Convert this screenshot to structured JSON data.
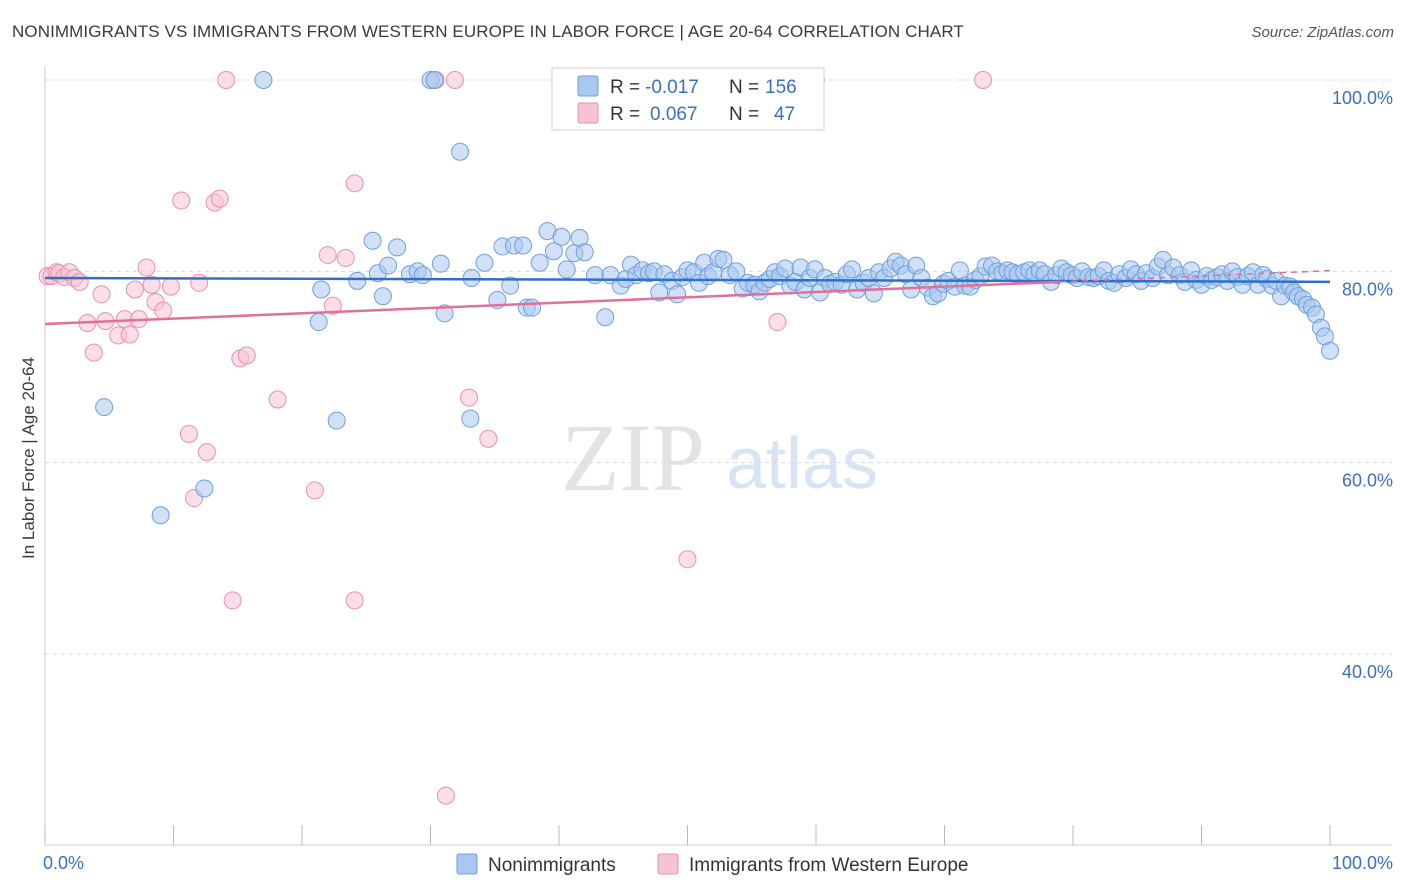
{
  "title": "NONIMMIGRANTS VS IMMIGRANTS FROM WESTERN EUROPE IN LABOR FORCE | AGE 20-64 CORRELATION CHART",
  "source": "Source: ZipAtlas.com",
  "watermark": {
    "zip": "ZIP",
    "atlas": "atlas"
  },
  "colors": {
    "blue_fill": "#a9c8f0",
    "blue_stroke": "#6f9fdc",
    "blue_line": "#2f6fcc",
    "pink_fill": "#f7c3d3",
    "pink_stroke": "#ea8fae",
    "pink_line": "#e0709a",
    "tick_text": "#3a6fc4",
    "grid": "#d9d9d9"
  },
  "legend": {
    "rows": [
      {
        "r_label": "R =",
        "r_value": "-0.017",
        "n_label": "N =",
        "n_value": "156"
      },
      {
        "r_label": "R =",
        "r_value": "0.067",
        "n_label": "N =",
        "n_value": "47"
      }
    ]
  },
  "chart_data": {
    "type": "scatter",
    "ylabel": "In Labor Force | Age 20-64",
    "xlim": [
      0,
      100
    ],
    "ylim": [
      20,
      102
    ],
    "x_tick_labels": [
      {
        "value": 0,
        "label": "0.0%"
      },
      {
        "value": 100,
        "label": "100.0%"
      }
    ],
    "y_tick_labels": [
      {
        "value": 100,
        "label": "100.0%"
      },
      {
        "value": 80,
        "label": "80.0%"
      },
      {
        "value": 60,
        "label": "60.0%"
      },
      {
        "value": 40,
        "label": "40.0%"
      }
    ],
    "grid": true,
    "series": [
      {
        "name": "Nonimmigrants",
        "trend": {
          "x0": 0,
          "y0": 79.3,
          "x1": 100,
          "y1": 78.9
        },
        "points": [
          [
            4.6,
            65.8
          ],
          [
            9,
            54.5
          ],
          [
            12.4,
            57.3
          ],
          [
            17,
            100
          ],
          [
            21.3,
            74.7
          ],
          [
            21.5,
            78.1
          ],
          [
            22.7,
            64.4
          ],
          [
            24.3,
            79
          ],
          [
            25.5,
            83.2
          ],
          [
            25.9,
            79.8
          ],
          [
            26.3,
            77.4
          ],
          [
            26.7,
            80.6
          ],
          [
            27.4,
            82.5
          ],
          [
            28.4,
            79.7
          ],
          [
            29,
            80
          ],
          [
            29.4,
            79.6
          ],
          [
            30,
            100
          ],
          [
            30.3,
            100
          ],
          [
            30.8,
            80.8
          ],
          [
            31.1,
            75.6
          ],
          [
            32.3,
            92.5
          ],
          [
            33.1,
            64.6
          ],
          [
            33.2,
            79.3
          ],
          [
            34.2,
            80.9
          ],
          [
            35.2,
            77
          ],
          [
            35.6,
            82.6
          ],
          [
            36.2,
            78.5
          ],
          [
            36.5,
            82.7
          ],
          [
            37.2,
            82.7
          ],
          [
            37.5,
            76.2
          ],
          [
            37.9,
            76.2
          ],
          [
            38.5,
            80.9
          ],
          [
            39.1,
            84.2
          ],
          [
            39.6,
            82.1
          ],
          [
            40.2,
            83.6
          ],
          [
            40.6,
            80.2
          ],
          [
            41.2,
            81.9
          ],
          [
            41.6,
            83.5
          ],
          [
            42,
            82
          ],
          [
            42.8,
            79.6
          ],
          [
            43.6,
            75.2
          ],
          [
            44,
            79.6
          ],
          [
            44.8,
            78.5
          ],
          [
            45.2,
            79.2
          ],
          [
            45.6,
            80.7
          ],
          [
            46,
            79.6
          ],
          [
            46.5,
            80.1
          ],
          [
            47,
            79.8
          ],
          [
            47.4,
            80
          ],
          [
            47.8,
            77.8
          ],
          [
            48.2,
            79.7
          ],
          [
            48.8,
            79
          ],
          [
            49.2,
            77.6
          ],
          [
            49.6,
            79.4
          ],
          [
            50,
            80.1
          ],
          [
            50.5,
            79.9
          ],
          [
            50.9,
            78.8
          ],
          [
            51.3,
            80.9
          ],
          [
            51.6,
            79.5
          ],
          [
            52,
            79.9
          ],
          [
            52.4,
            81.3
          ],
          [
            52.8,
            81.2
          ],
          [
            53.3,
            79.6
          ],
          [
            53.8,
            80
          ],
          [
            54.3,
            78.2
          ],
          [
            54.7,
            78.8
          ],
          [
            55.2,
            78.6
          ],
          [
            55.6,
            77.9
          ],
          [
            56,
            78.8
          ],
          [
            56.4,
            79.2
          ],
          [
            56.8,
            79.9
          ],
          [
            57.2,
            79.5
          ],
          [
            57.6,
            80.3
          ],
          [
            58,
            78.5
          ],
          [
            58.4,
            78.9
          ],
          [
            58.8,
            80.4
          ],
          [
            59.1,
            78.1
          ],
          [
            59.5,
            79.3
          ],
          [
            59.9,
            80.2
          ],
          [
            60.3,
            77.8
          ],
          [
            60.7,
            79.3
          ],
          [
            61.1,
            78.7
          ],
          [
            61.5,
            78.9
          ],
          [
            62,
            78.6
          ],
          [
            62.4,
            79.7
          ],
          [
            62.8,
            80.2
          ],
          [
            63.2,
            78.1
          ],
          [
            63.7,
            78.8
          ],
          [
            64.1,
            79.3
          ],
          [
            64.5,
            77.7
          ],
          [
            64.9,
            79.9
          ],
          [
            65.3,
            79.3
          ],
          [
            65.8,
            80.3
          ],
          [
            66.2,
            81
          ],
          [
            66.6,
            80.6
          ],
          [
            67,
            79.7
          ],
          [
            67.4,
            78.1
          ],
          [
            67.8,
            80.6
          ],
          [
            68.2,
            79.3
          ],
          [
            68.7,
            78.3
          ],
          [
            69.1,
            77.4
          ],
          [
            69.5,
            77.7
          ],
          [
            69.9,
            78.7
          ],
          [
            70.3,
            79
          ],
          [
            70.8,
            78.4
          ],
          [
            71.2,
            80.1
          ],
          [
            71.6,
            78.5
          ],
          [
            72,
            78.4
          ],
          [
            72.4,
            79.1
          ],
          [
            72.8,
            79.5
          ],
          [
            73.2,
            80.5
          ],
          [
            73.7,
            80.6
          ],
          [
            74.1,
            80
          ],
          [
            74.5,
            79.8
          ],
          [
            74.9,
            80.1
          ],
          [
            75.3,
            79.9
          ],
          [
            75.7,
            79.7
          ],
          [
            76.2,
            79.9
          ],
          [
            76.6,
            80.1
          ],
          [
            77,
            79.7
          ],
          [
            77.4,
            80.1
          ],
          [
            77.8,
            79.7
          ],
          [
            78.3,
            78.9
          ],
          [
            78.7,
            79.6
          ],
          [
            79.1,
            80.3
          ],
          [
            79.5,
            79.9
          ],
          [
            79.9,
            79.6
          ],
          [
            80.3,
            79.3
          ],
          [
            80.7,
            80
          ],
          [
            81.2,
            79.4
          ],
          [
            81.6,
            79.3
          ],
          [
            82,
            79.5
          ],
          [
            82.4,
            80.1
          ],
          [
            82.8,
            79
          ],
          [
            83.2,
            78.8
          ],
          [
            83.6,
            79.7
          ],
          [
            84.1,
            79.3
          ],
          [
            84.5,
            80.2
          ],
          [
            84.9,
            79.7
          ],
          [
            85.3,
            79
          ],
          [
            85.7,
            79.8
          ],
          [
            86.2,
            79.3
          ],
          [
            86.6,
            80.5
          ],
          [
            87,
            81.2
          ],
          [
            87.4,
            79.6
          ],
          [
            87.8,
            80.4
          ],
          [
            88.3,
            79.6
          ],
          [
            88.7,
            78.9
          ],
          [
            89.2,
            80.1
          ],
          [
            89.6,
            79.1
          ],
          [
            90,
            78.6
          ],
          [
            90.4,
            79.5
          ],
          [
            90.8,
            79.1
          ],
          [
            91.2,
            79.4
          ],
          [
            91.6,
            79.7
          ],
          [
            92,
            79
          ],
          [
            92.4,
            80
          ],
          [
            92.8,
            79.4
          ],
          [
            93.2,
            78.6
          ],
          [
            93.6,
            79.5
          ],
          [
            94,
            79.9
          ],
          [
            94.4,
            78.6
          ],
          [
            94.8,
            79.6
          ],
          [
            95.1,
            79.2
          ],
          [
            95.5,
            78.5
          ],
          [
            95.8,
            79
          ],
          [
            96.2,
            77.4
          ],
          [
            96.5,
            78.5
          ],
          [
            96.9,
            78.4
          ],
          [
            97.2,
            77.8
          ],
          [
            97.5,
            77.4
          ],
          [
            97.9,
            77.1
          ],
          [
            98.2,
            76.5
          ],
          [
            98.6,
            76.2
          ],
          [
            98.9,
            75.5
          ],
          [
            99.3,
            74.1
          ],
          [
            99.6,
            73.2
          ],
          [
            100,
            71.7
          ]
        ]
      },
      {
        "name": "Immigrants from Western Europe",
        "trend": {
          "x0": 0,
          "y0": 74.5,
          "x1": 79,
          "y1": 78.9
        },
        "points": [
          [
            0.2,
            79.5
          ],
          [
            0.5,
            79.5
          ],
          [
            0.9,
            79.9
          ],
          [
            1.1,
            79.8
          ],
          [
            1.5,
            79.4
          ],
          [
            1.9,
            79.9
          ],
          [
            2.3,
            79.3
          ],
          [
            2.7,
            78.9
          ],
          [
            3.3,
            74.6
          ],
          [
            3.8,
            71.5
          ],
          [
            4.4,
            77.6
          ],
          [
            4.7,
            74.8
          ],
          [
            5.7,
            73.3
          ],
          [
            6.2,
            75
          ],
          [
            6.6,
            73.4
          ],
          [
            7,
            78.1
          ],
          [
            7.3,
            75
          ],
          [
            7.9,
            80.4
          ],
          [
            8.3,
            78.6
          ],
          [
            8.6,
            76.8
          ],
          [
            9.2,
            75.9
          ],
          [
            9.8,
            78.4
          ],
          [
            10.6,
            87.4
          ],
          [
            11.2,
            63
          ],
          [
            11.6,
            56.3
          ],
          [
            12,
            78.8
          ],
          [
            12.6,
            61.1
          ],
          [
            13.2,
            87.2
          ],
          [
            13.6,
            87.6
          ],
          [
            14.1,
            100
          ],
          [
            14.6,
            45.6
          ],
          [
            15.2,
            70.9
          ],
          [
            15.7,
            71.2
          ],
          [
            18.1,
            66.6
          ],
          [
            21,
            57.1
          ],
          [
            22,
            81.7
          ],
          [
            22.4,
            76.4
          ],
          [
            23.4,
            81.4
          ],
          [
            24.1,
            89.2
          ],
          [
            24.1,
            45.6
          ],
          [
            30.4,
            100
          ],
          [
            31.2,
            25.2
          ],
          [
            31.9,
            100
          ],
          [
            33,
            66.8
          ],
          [
            34.5,
            62.5
          ],
          [
            50,
            49.9
          ],
          [
            57,
            74.7
          ],
          [
            60,
            100
          ],
          [
            73,
            100
          ]
        ]
      }
    ]
  },
  "bottom_legend": {
    "items": [
      {
        "label": "Nonimmigrants"
      },
      {
        "label": "Immigrants from Western Europe"
      }
    ]
  }
}
